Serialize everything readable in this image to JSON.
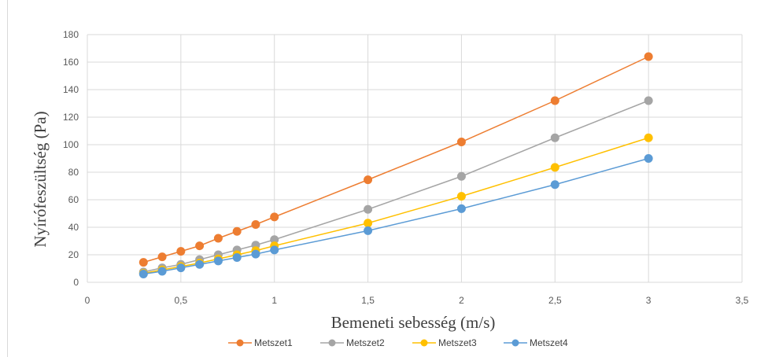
{
  "chart_data": {
    "type": "line",
    "xlabel": "Bemeneti sebesség (m/s)",
    "ylabel": "Nyírófeszültség (Pa)",
    "xlim": [
      0,
      3.5
    ],
    "ylim": [
      0,
      180
    ],
    "x_ticks": [
      {
        "value": 0,
        "label": "0"
      },
      {
        "value": 0.5,
        "label": "0,5"
      },
      {
        "value": 1,
        "label": "1"
      },
      {
        "value": 1.5,
        "label": "1,5"
      },
      {
        "value": 2,
        "label": "2"
      },
      {
        "value": 2.5,
        "label": "2,5"
      },
      {
        "value": 3,
        "label": "3"
      },
      {
        "value": 3.5,
        "label": "3,5"
      }
    ],
    "y_ticks": [
      {
        "value": 0,
        "label": "0"
      },
      {
        "value": 20,
        "label": "20"
      },
      {
        "value": 40,
        "label": "40"
      },
      {
        "value": 60,
        "label": "60"
      },
      {
        "value": 80,
        "label": "80"
      },
      {
        "value": 100,
        "label": "100"
      },
      {
        "value": 120,
        "label": "120"
      },
      {
        "value": 140,
        "label": "140"
      },
      {
        "value": 160,
        "label": "160"
      },
      {
        "value": 180,
        "label": "180"
      }
    ],
    "grid": "both",
    "legend_position": "bottom",
    "x": [
      0.3,
      0.4,
      0.5,
      0.6,
      0.7,
      0.8,
      0.9,
      1,
      1.5,
      2,
      2.5,
      3
    ],
    "series": [
      {
        "name": "Metszet1",
        "color": "#ed7d31",
        "values": [
          14.5,
          18.5,
          22.5,
          26.5,
          32,
          37,
          42,
          47.5,
          74.5,
          102,
          132,
          164
        ]
      },
      {
        "name": "Metszet2",
        "color": "#a5a5a5",
        "values": [
          7.5,
          10.5,
          13,
          16.5,
          20,
          23.5,
          27,
          31,
          53,
          77,
          105,
          132
        ]
      },
      {
        "name": "Metszet3",
        "color": "#ffc000",
        "values": [
          6.5,
          9,
          11.5,
          14,
          17,
          20,
          23,
          26.5,
          43,
          62.5,
          83.5,
          105
        ]
      },
      {
        "name": "Metszet4",
        "color": "#5b9bd5",
        "values": [
          6,
          8,
          10.5,
          13,
          15.5,
          18,
          20.5,
          23.5,
          37.5,
          53.5,
          71,
          90
        ]
      }
    ]
  }
}
